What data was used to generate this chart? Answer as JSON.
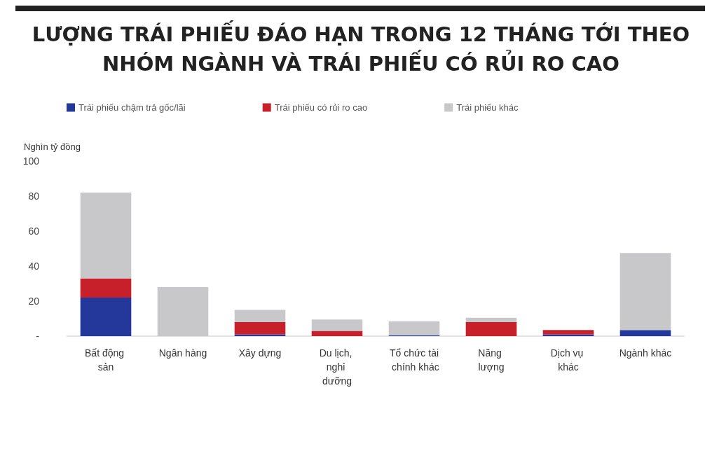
{
  "chart_data": {
    "type": "bar",
    "title": "LƯỢNG TRÁI PHIẾU ĐÁO HẠN TRONG 12 THÁNG TỚI THEO NHÓM NGÀNH VÀ TRÁI PHIẾU CÓ RỦI RO CAO",
    "ylabel": "Nghìn tỷ đồng",
    "categories": [
      "Bất động sản",
      "Ngân hàng",
      "Xây dựng",
      "Du lịch, nghỉ dưỡng",
      "Tổ chức tài chính khác",
      "Năng lượng",
      "Dịch vụ khác",
      "Ngành khác"
    ],
    "stacked": true,
    "series": [
      {
        "name": "Trái phiếu chậm trả gốc/lãi",
        "color": "#23389a",
        "values": [
          22,
          0,
          1,
          0,
          0.5,
          0,
          1,
          3.5
        ]
      },
      {
        "name": "Trái phiếu có rủi ro cao",
        "color": "#c8202a",
        "values": [
          11,
          0,
          7,
          3,
          0,
          8,
          2.5,
          0
        ]
      },
      {
        "name": "Trái phiếu khác",
        "color": "#c8c8ca",
        "values": [
          49,
          28,
          7,
          6.5,
          8,
          2.5,
          0,
          44
        ]
      }
    ],
    "ylim": [
      0,
      100
    ],
    "yticks": [
      {
        "value": 0,
        "label": "-"
      },
      20,
      40,
      60,
      80,
      100
    ],
    "grid": false,
    "legend": "top"
  }
}
